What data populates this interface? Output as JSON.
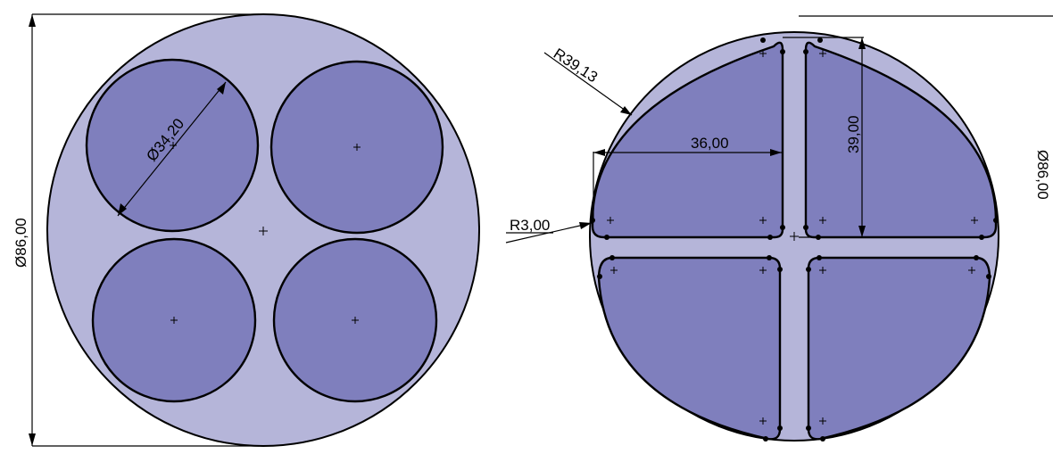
{
  "colors": {
    "plate_fill": "#b5b5d9",
    "pocket_fill": "#7f7fbd",
    "line": "#000000",
    "background": "#ffffff"
  },
  "left_view": {
    "dim_plate_diameter": "Ø86,00",
    "dim_hole_diameter": "Ø34,20"
  },
  "right_view": {
    "dim_outer_radius": "R39,13",
    "dim_width": "36,00",
    "dim_height": "39,00",
    "dim_corner_radius": "R3,00",
    "dim_plate_diameter": "Ø86,00"
  }
}
